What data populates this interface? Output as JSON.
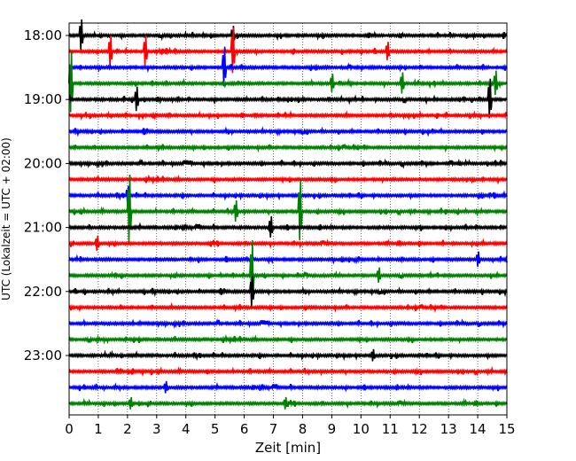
{
  "chart_data": {
    "type": "line",
    "title": "",
    "xlabel": "Zeit  [min]",
    "ylabel": "UTC (Lokalzeit = UTC + 02:00)",
    "xlim": [
      0,
      15
    ],
    "x_ticks": [
      "0",
      "1",
      "2",
      "3",
      "4",
      "5",
      "6",
      "7",
      "8",
      "9",
      "10",
      "11",
      "12",
      "13",
      "14",
      "15"
    ],
    "y_ticks": [
      "18:00",
      "19:00",
      "20:00",
      "21:00",
      "22:00",
      "23:00"
    ],
    "trace_interval_minutes": 15,
    "grid": "vertical dotted lines at each minute",
    "trace_colors": [
      "#000000",
      "#ff0000",
      "#0000ff",
      "#008000"
    ],
    "traces": [
      {
        "start": "18:00",
        "color": "#000000"
      },
      {
        "start": "18:15",
        "color": "#ff0000"
      },
      {
        "start": "18:30",
        "color": "#0000ff"
      },
      {
        "start": "18:45",
        "color": "#008000"
      },
      {
        "start": "19:00",
        "color": "#000000"
      },
      {
        "start": "19:15",
        "color": "#ff0000"
      },
      {
        "start": "19:30",
        "color": "#0000ff"
      },
      {
        "start": "19:45",
        "color": "#008000"
      },
      {
        "start": "20:00",
        "color": "#000000"
      },
      {
        "start": "20:15",
        "color": "#ff0000"
      },
      {
        "start": "20:30",
        "color": "#0000ff"
      },
      {
        "start": "20:45",
        "color": "#008000"
      },
      {
        "start": "21:00",
        "color": "#000000"
      },
      {
        "start": "21:15",
        "color": "#ff0000"
      },
      {
        "start": "21:30",
        "color": "#0000ff"
      },
      {
        "start": "21:45",
        "color": "#008000"
      },
      {
        "start": "22:00",
        "color": "#000000"
      },
      {
        "start": "22:15",
        "color": "#ff0000"
      },
      {
        "start": "22:30",
        "color": "#0000ff"
      },
      {
        "start": "22:45",
        "color": "#008000"
      },
      {
        "start": "23:00",
        "color": "#000000"
      },
      {
        "start": "23:15",
        "color": "#ff0000"
      },
      {
        "start": "23:30",
        "color": "#0000ff"
      },
      {
        "start": "23:45",
        "color": "#008000"
      }
    ],
    "spikes": [
      {
        "trace": "18:00",
        "minute": 0.4,
        "amplitude": 1.0
      },
      {
        "trace": "18:00",
        "minute": 5.6,
        "amplitude": 0.6
      },
      {
        "trace": "18:15",
        "minute": 1.4,
        "amplitude": 1.0
      },
      {
        "trace": "18:15",
        "minute": 2.6,
        "amplitude": 1.0
      },
      {
        "trace": "18:15",
        "minute": 5.6,
        "amplitude": 1.5
      },
      {
        "trace": "18:15",
        "minute": 10.9,
        "amplitude": 0.6
      },
      {
        "trace": "18:30",
        "minute": 5.3,
        "amplitude": 1.3
      },
      {
        "trace": "18:45",
        "minute": 0.05,
        "amplitude": 2.0
      },
      {
        "trace": "18:45",
        "minute": 9.0,
        "amplitude": 0.6
      },
      {
        "trace": "18:45",
        "minute": 11.4,
        "amplitude": 0.7
      },
      {
        "trace": "18:45",
        "minute": 14.6,
        "amplitude": 0.8
      },
      {
        "trace": "19:00",
        "minute": 2.3,
        "amplitude": 0.8
      },
      {
        "trace": "19:00",
        "minute": 14.4,
        "amplitude": 1.3
      },
      {
        "trace": "20:30",
        "minute": 2.0,
        "amplitude": 0.6
      },
      {
        "trace": "20:45",
        "minute": 2.05,
        "amplitude": 2.3
      },
      {
        "trace": "20:45",
        "minute": 5.7,
        "amplitude": 0.7
      },
      {
        "trace": "20:45",
        "minute": 7.9,
        "amplitude": 2.0
      },
      {
        "trace": "21:00",
        "minute": 6.9,
        "amplitude": 0.7
      },
      {
        "trace": "21:15",
        "minute": 0.95,
        "amplitude": 0.5
      },
      {
        "trace": "21:30",
        "minute": 14.0,
        "amplitude": 0.5
      },
      {
        "trace": "21:45",
        "minute": 6.25,
        "amplitude": 2.2
      },
      {
        "trace": "21:45",
        "minute": 10.6,
        "amplitude": 0.5
      },
      {
        "trace": "22:00",
        "minute": 6.25,
        "amplitude": 1.0
      },
      {
        "trace": "23:00",
        "minute": 10.4,
        "amplitude": 0.4
      },
      {
        "trace": "23:30",
        "minute": 3.3,
        "amplitude": 0.4
      },
      {
        "trace": "23:45",
        "minute": 7.4,
        "amplitude": 0.4
      },
      {
        "trace": "23:45",
        "minute": 2.1,
        "amplitude": 0.4
      }
    ]
  }
}
